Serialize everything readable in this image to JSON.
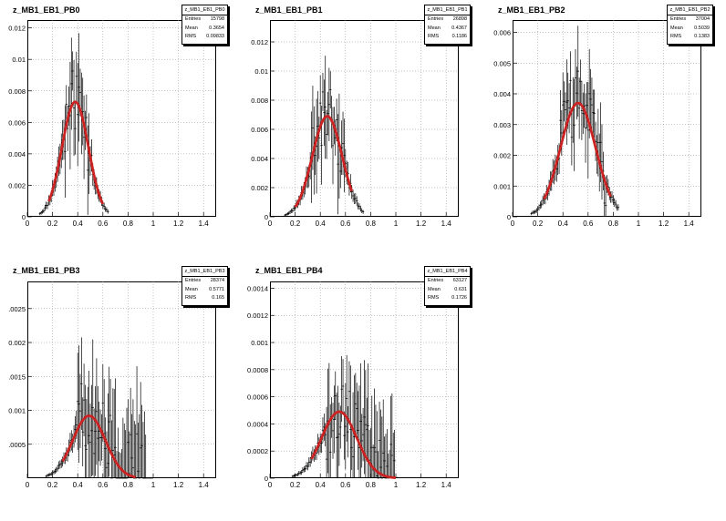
{
  "chart_data": [
    {
      "type": "histogram",
      "title": "z_MB1_EB1_PB0",
      "xlim": [
        0,
        1.5
      ],
      "ylim": [
        0,
        0.0125
      ],
      "x_ticks": [
        "0",
        "0.2",
        "0.4",
        "0.6",
        "0.8",
        "1",
        "1.2",
        "1.4"
      ],
      "y_ticks": [
        "0",
        "0.002",
        "0.004",
        "0.006",
        "0.008",
        "0.01",
        "0.012"
      ],
      "y_tick_values": [
        0,
        0.002,
        0.004,
        0.006,
        0.008,
        0.01,
        0.012
      ],
      "grid": true,
      "stats": {
        "name": "z_MB1_EB1_PB0",
        "entries_label": "Entries",
        "entries": "15798",
        "mean_label": "Mean",
        "mean": "0.3654",
        "rms_label": "RMS",
        "rms": "0.09833"
      },
      "fit": {
        "type": "gaussian",
        "amplitude": 0.0073,
        "mean": 0.38,
        "sigma": 0.105,
        "range": [
          0.17,
          0.6
        ],
        "color": "#cc2222"
      },
      "data_range": [
        0.1,
        0.65
      ],
      "noise_range": [
        0.3,
        0.5
      ],
      "noise_amp": 0.0045,
      "seed": 11
    },
    {
      "type": "histogram",
      "title": "z_MB1_EB1_PB1",
      "xlim": [
        0,
        1.5
      ],
      "ylim": [
        0,
        0.0135
      ],
      "x_ticks": [
        "0",
        "0.2",
        "0.4",
        "0.6",
        "0.8",
        "1",
        "1.2",
        "1.4"
      ],
      "y_ticks": [
        "0",
        "0.002",
        "0.004",
        "0.006",
        "0.008",
        "0.01",
        "0.012"
      ],
      "y_tick_values": [
        0,
        0.002,
        0.004,
        0.006,
        0.008,
        0.01,
        0.012
      ],
      "grid": true,
      "stats": {
        "name": "z_MB1_EB1_PB1",
        "entries_label": "Entries",
        "entries": "26898",
        "mean_label": "Mean",
        "mean": "0.4367",
        "rms_label": "RMS",
        "rms": "0.1186"
      },
      "fit": {
        "type": "gaussian",
        "amplitude": 0.0069,
        "mean": 0.455,
        "sigma": 0.118,
        "range": [
          0.2,
          0.65
        ],
        "color": "#cc2222"
      },
      "data_range": [
        0.12,
        0.75
      ],
      "noise_range": [
        0.33,
        0.6
      ],
      "noise_amp": 0.0045,
      "seed": 23
    },
    {
      "type": "histogram",
      "title": "z_MB1_EB1_PB2",
      "xlim": [
        0,
        1.5
      ],
      "ylim": [
        0,
        0.0064
      ],
      "x_ticks": [
        "0",
        "0.2",
        "0.4",
        "0.6",
        "0.8",
        "1",
        "1.2",
        "1.4"
      ],
      "y_ticks": [
        "0",
        "0.001",
        "0.002",
        "0.003",
        "0.004",
        "0.005",
        "0.006"
      ],
      "y_tick_values": [
        0,
        0.001,
        0.002,
        0.003,
        0.004,
        0.005,
        0.006
      ],
      "grid": true,
      "stats": {
        "name": "z_MB1_EB1_PB2",
        "entries_label": "Entries",
        "entries": "37004",
        "mean_label": "Mean",
        "mean": "0.5039",
        "rms_label": "RMS",
        "rms": "0.1383"
      },
      "fit": {
        "type": "gaussian",
        "amplitude": 0.0037,
        "mean": 0.52,
        "sigma": 0.14,
        "range": [
          0.25,
          0.78
        ],
        "color": "#cc2222"
      },
      "data_range": [
        0.15,
        0.85
      ],
      "noise_range": [
        0.38,
        0.75
      ],
      "noise_amp": 0.0022,
      "seed": 37
    },
    {
      "type": "histogram",
      "title": "z_MB1_EB1_PB3",
      "xlim": [
        0,
        1.5
      ],
      "ylim": [
        0,
        0.0029
      ],
      "x_ticks": [
        "0",
        "0.2",
        "0.4",
        "0.6",
        "0.8",
        "1",
        "1.2",
        "1.4"
      ],
      "y_ticks": [
        ".0005",
        "0.001",
        ".0015",
        "0.002",
        ".0025"
      ],
      "y_tick_values": [
        0.0005,
        0.001,
        0.0015,
        0.002,
        0.0025
      ],
      "grid": true,
      "stats": {
        "name": "z_MB1_EB1_PB3",
        "entries_label": "Entries",
        "entries": "28374",
        "mean_label": "Mean",
        "mean": "0.5771",
        "rms_label": "RMS",
        "rms": "0.165"
      },
      "fit": {
        "type": "gaussian",
        "amplitude": 0.00092,
        "mean": 0.49,
        "sigma": 0.13,
        "range": [
          0.28,
          0.86
        ],
        "color": "#cc2222"
      },
      "data_range": [
        0.15,
        1.0
      ],
      "noise_range": [
        0.4,
        0.95
      ],
      "noise_amp": 0.0013,
      "seed": 51
    },
    {
      "type": "histogram",
      "title": "z_MB1_EB1_PB4",
      "xlim": [
        0,
        1.5
      ],
      "ylim": [
        0,
        0.00145
      ],
      "x_ticks": [
        "0",
        "0.2",
        "0.4",
        "0.6",
        "0.8",
        "1",
        "1.2",
        "1.4"
      ],
      "y_ticks": [
        "0",
        "0.0002",
        "0.0004",
        "0.0006",
        "0.0008",
        "0.001",
        "0.0012",
        "0.0014"
      ],
      "y_tick_values": [
        0,
        0.0002,
        0.0004,
        0.0006,
        0.0008,
        0.001,
        0.0012,
        0.0014
      ],
      "grid": true,
      "stats": {
        "name": "z_MB1_EB1_PB4",
        "entries_label": "Entries",
        "entries": "63127",
        "mean_label": "Mean",
        "mean": "0.631",
        "rms_label": "RMS",
        "rms": "0.1726"
      },
      "fit": {
        "type": "gaussian",
        "amplitude": 0.00049,
        "mean": 0.55,
        "sigma": 0.14,
        "range": [
          0.33,
          1.0
        ],
        "color": "#cc2222"
      },
      "data_range": [
        0.18,
        1.02
      ],
      "noise_range": [
        0.45,
        1.0
      ],
      "noise_amp": 0.0006,
      "seed": 67
    }
  ]
}
